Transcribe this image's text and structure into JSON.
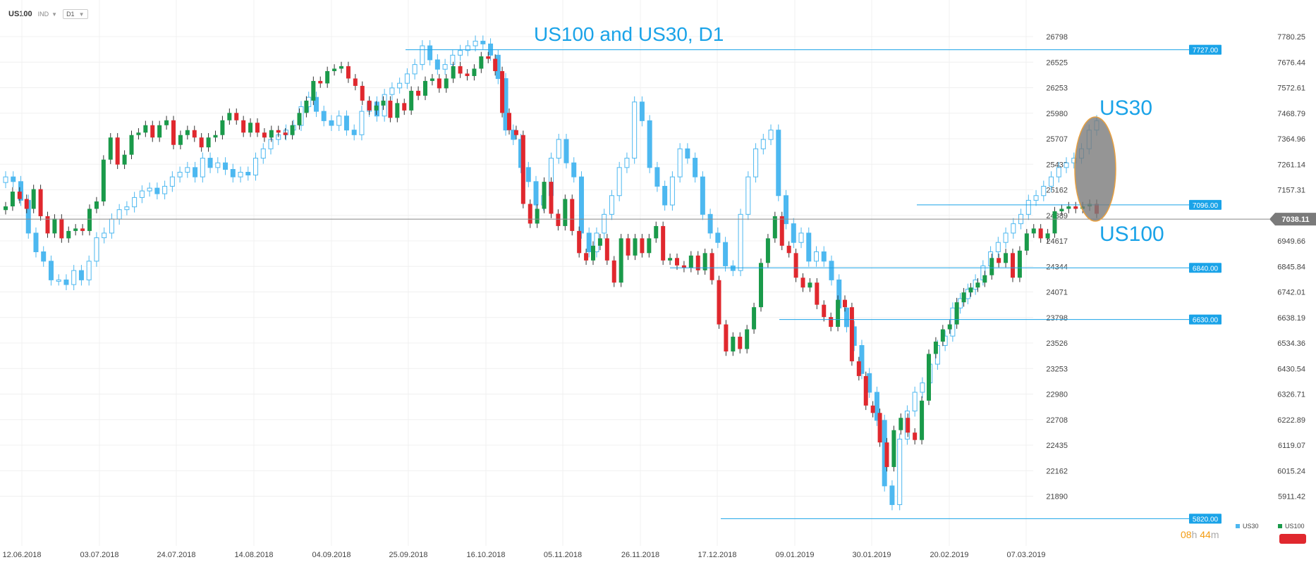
{
  "toolbar": {
    "symbol": "US100",
    "indicator_label": "IND",
    "timeframe": "D1"
  },
  "title": "US100 and US30, D1",
  "annotations": {
    "us30": "US30",
    "us100": "US100"
  },
  "timer": {
    "hours": "08",
    "h_unit": "h",
    "minutes": "44",
    "m_unit": "m"
  },
  "legend": [
    {
      "name": "US30",
      "color": "#4db8f0"
    },
    {
      "name": "US100",
      "color": "#1a9a4a"
    }
  ],
  "colors": {
    "us30": "#4db8f0",
    "us100_up": "#1a9a4a",
    "us100_down": "#e0282e",
    "level": "#1aa3e8",
    "grid": "#f0f0f0",
    "axis_text": "#444444",
    "oval": "#7a7a7a",
    "oval_stroke": "#e8a040"
  },
  "chart_data": {
    "type": "candlestick",
    "title": "US100 and US30, D1",
    "x_tick_labels": [
      "12.06.2018",
      "03.07.2018",
      "24.07.2018",
      "14.08.2018",
      "04.09.2018",
      "25.09.2018",
      "16.10.2018",
      "05.11.2018",
      "26.11.2018",
      "17.12.2018",
      "09.01.2019",
      "30.01.2019",
      "20.02.2019",
      "07.03.2019"
    ],
    "left_axis_us30_ticks": [
      "26798",
      "26525",
      "26253",
      "25980",
      "25707",
      "25435",
      "25162",
      "24889",
      "24617",
      "24344",
      "24071",
      "23798",
      "23526",
      "23253",
      "22980",
      "22708",
      "22435",
      "22162",
      "21890"
    ],
    "right_axis_us100_ticks": [
      "7780.25",
      "7676.44",
      "7572.61",
      "7468.79",
      "7364.96",
      "7261.14",
      "7157.31",
      "7053.48",
      "6949.66",
      "6845.84",
      "6742.01",
      "6638.19",
      "6534.36",
      "6430.54",
      "6326.71",
      "6222.89",
      "6119.07",
      "6015.24",
      "5911.42"
    ],
    "ylim_us100": [
      5859.5,
      7780.25
    ],
    "current_price": "7038.11",
    "horizontal_levels": [
      {
        "label": "7727.00",
        "value": 7727
      },
      {
        "label": "7096.00",
        "value": 7096
      },
      {
        "label": "6840.00",
        "value": 6840
      },
      {
        "label": "6630.00",
        "value": 6630
      },
      {
        "label": "5820.00",
        "value": 5820
      }
    ],
    "series": [
      {
        "name": "US100",
        "close": [
          7090,
          7150,
          7120,
          7080,
          7160,
          7050,
          6980,
          7040,
          6960,
          6990,
          7000,
          6990,
          7080,
          7110,
          7280,
          7370,
          7260,
          7300,
          7380,
          7390,
          7420,
          7370,
          7420,
          7440,
          7340,
          7380,
          7400,
          7370,
          7330,
          7370,
          7380,
          7440,
          7470,
          7440,
          7390,
          7430,
          7390,
          7370,
          7400,
          7390,
          7380,
          7420,
          7470,
          7520,
          7600,
          7590,
          7640,
          7650,
          7660,
          7610,
          7580,
          7520,
          7480,
          7500,
          7520,
          7450,
          7510,
          7480,
          7560,
          7540,
          7600,
          7610,
          7570,
          7610,
          7660,
          7630,
          7620,
          7650,
          7700,
          7690,
          7640,
          7470,
          7400,
          7380,
          7100,
          7020,
          7080,
          7190,
          7060,
          7010,
          7120,
          6990,
          6900,
          6870,
          6930,
          6960,
          6870,
          6780,
          6960,
          6890,
          6960,
          6900,
          6960,
          7010,
          6870,
          6880,
          6850,
          6840,
          6890,
          6830,
          6900,
          6790,
          6610,
          6500,
          6560,
          6510,
          6590,
          6680,
          6860,
          6960,
          7050,
          6930,
          6900,
          6800,
          6760,
          6780,
          6690,
          6640,
          6600,
          6710,
          6680,
          6460,
          6400,
          6280,
          6250,
          6130,
          6030,
          6180,
          6230,
          6170,
          6140,
          6300,
          6490,
          6540,
          6590,
          6610,
          6700,
          6740,
          6760,
          6780,
          6810,
          6880,
          6860,
          6900,
          6800,
          6910,
          6980,
          7000,
          6960,
          6980,
          7070,
          7080,
          7090,
          7080,
          7090,
          7100,
          7060
        ]
      },
      {
        "name": "US30",
        "close": [
          25300,
          25250,
          25050,
          24700,
          24500,
          24400,
          24200,
          24200,
          24150,
          24300,
          24200,
          24400,
          24650,
          24700,
          24850,
          24950,
          24980,
          25080,
          25150,
          25180,
          25120,
          25200,
          25300,
          25350,
          25400,
          25300,
          25500,
          25400,
          25450,
          25380,
          25300,
          25350,
          25320,
          25500,
          25600,
          25700,
          25750,
          25800,
          25850,
          26050,
          26150,
          26000,
          25900,
          25850,
          25950,
          25800,
          25750,
          26000,
          26100,
          25950,
          26180,
          26250,
          26300,
          26400,
          26500,
          26700,
          26550,
          26450,
          26500,
          26600,
          26650,
          26700,
          26750,
          26720,
          26600,
          26350,
          25800,
          25700,
          25400,
          25250,
          25000,
          25100,
          25500,
          25700,
          25450,
          25300,
          24700,
          24500,
          24700,
          24900,
          25100,
          25400,
          25500,
          26100,
          25900,
          25400,
          25200,
          25000,
          25300,
          25600,
          25500,
          25300,
          24900,
          24700,
          24600,
          24350,
          24300,
          24900,
          25300,
          25600,
          25700,
          25800,
          25100,
          24800,
          24600,
          24700,
          24400,
          24500,
          24400,
          24200,
          23900,
          23700,
          23500,
          23200,
          23000,
          22700,
          22000,
          21800,
          22500,
          22800,
          23000,
          23100,
          23300,
          23500,
          23600,
          23900,
          24000,
          24100,
          24200,
          24350,
          24500,
          24600,
          24700,
          24800,
          24900,
          25050,
          25100,
          25200,
          25300,
          25400,
          25450,
          25500,
          25600,
          25800,
          25900
        ]
      }
    ]
  }
}
